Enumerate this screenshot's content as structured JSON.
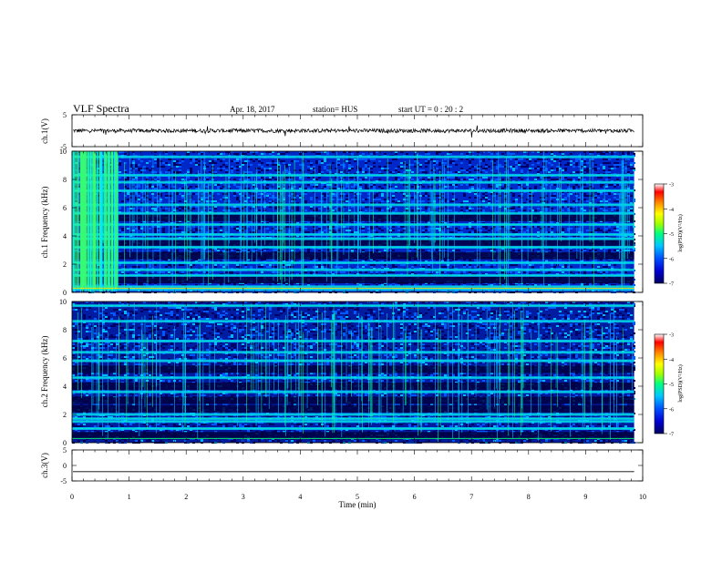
{
  "header": {
    "title": "VLF Spectra",
    "date": "Apr. 18, 2017",
    "station": "station= HUS",
    "start_ut": "start  UT  =   0  : 20 : 2"
  },
  "colors": {
    "scale_stops": [
      "#000060",
      "#0000d0",
      "#0050ff",
      "#00c8ff",
      "#00ff80",
      "#a0ff00",
      "#ffff00",
      "#ff8000",
      "#ff0000",
      "#ffffff"
    ],
    "waveform": "#000000"
  },
  "chart_data": [
    {
      "type": "line",
      "id": "ch1-waveform",
      "ylabel": "ch.1(V)",
      "ylim": [
        -5,
        5
      ],
      "yticks": [
        "5",
        "-5"
      ],
      "xlim": [
        0,
        10
      ],
      "description_values": {
        "mean": 0,
        "amplitude_approx": 0.6
      }
    },
    {
      "type": "heatmap",
      "id": "ch1-spectrogram",
      "ylabel": "ch.1 Frequency (kHz)",
      "ylim": [
        0,
        10
      ],
      "yticks": [
        "0",
        "2",
        "4",
        "6",
        "8",
        "10"
      ],
      "xlim": [
        0,
        10
      ],
      "colorbar": {
        "label": "log(PSD)(V²/Hz)",
        "range": [
          -7,
          -3
        ],
        "ticks": [
          "-3",
          "-4",
          "-5",
          "-6",
          "-7"
        ]
      },
      "bright_bands_khz": [
        0.2,
        0.4,
        1.2,
        1.6,
        2.1,
        3.2,
        3.8,
        4.1,
        4.8,
        5.6,
        6.2,
        7.2,
        7.8,
        8.3,
        9.6
      ],
      "dark_bands_khz": [
        0.9,
        2.6,
        3.5,
        5.3
      ],
      "burst_interval_min": [
        0.0,
        0.8
      ]
    },
    {
      "type": "heatmap",
      "id": "ch2-spectrogram",
      "ylabel": "ch.2 Frequency (kHz)",
      "ylim": [
        0,
        10
      ],
      "yticks": [
        "0",
        "2",
        "4",
        "6",
        "8",
        "10"
      ],
      "xlim": [
        0,
        10
      ],
      "colorbar": {
        "label": "log(PSD)(V²/Hz)",
        "range": [
          -7,
          -3
        ],
        "ticks": [
          "-3",
          "-4",
          "-5",
          "-6",
          "-7"
        ]
      },
      "bright_bands_khz": [
        1.0,
        1.5,
        1.7,
        2.0,
        3.6,
        4.6,
        5.8,
        6.4,
        7.2,
        8.6,
        9.7
      ],
      "dark_bands_khz": [
        0.5,
        2.4,
        3.0,
        4.0,
        5.2
      ],
      "burst_interval_min": null
    },
    {
      "type": "line",
      "id": "ch3-waveform",
      "ylabel": "ch.3(V)",
      "ylim": [
        -5,
        5
      ],
      "yticks": [
        "5",
        "0",
        "-5"
      ],
      "xlim": [
        0,
        10
      ],
      "description_values": {
        "mean": -2,
        "amplitude_approx": 0
      }
    }
  ],
  "x_axis": {
    "label": "Time  (min)",
    "ticks": [
      "0",
      "1",
      "2",
      "3",
      "4",
      "5",
      "6",
      "7",
      "8",
      "9",
      "10"
    ],
    "data_end_min": 9.85
  }
}
